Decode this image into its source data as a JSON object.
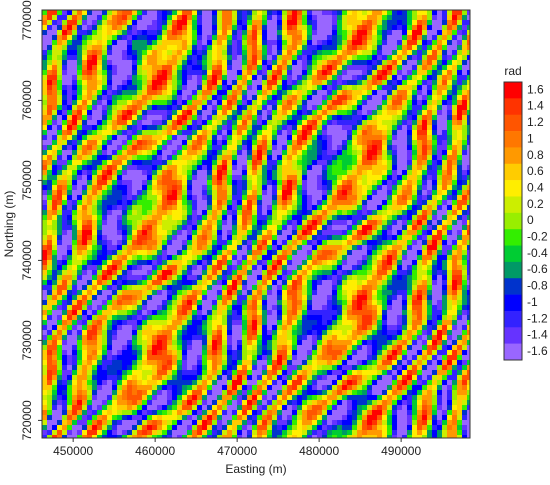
{
  "chart_data": {
    "type": "raster",
    "xlabel": "Easting (m)",
    "ylabel": "Northing (m)",
    "xlim": [
      446200,
      498400
    ],
    "xticks": [
      450000,
      460000,
      470000,
      480000,
      490000
    ],
    "ylim": [
      717800,
      771300
    ],
    "yticks": [
      720000,
      730000,
      740000,
      750000,
      760000,
      770000
    ],
    "colorbar": {
      "title": "rad",
      "levels": [
        1.6,
        1.4,
        1.2,
        1,
        0.8,
        0.6,
        0.4,
        0.2,
        0,
        -0.2,
        -0.4,
        -0.6,
        -0.8,
        -1,
        -1.2,
        -1.4,
        -1.6
      ],
      "colors": [
        "#ff0000",
        "#ff3300",
        "#ff5500",
        "#ff7700",
        "#ff9900",
        "#ffcc00",
        "#ffee00",
        "#ccee00",
        "#99ee00",
        "#33ee00",
        "#00cc33",
        "#009966",
        "#0033cc",
        "#0000ff",
        "#3322ff",
        "#6633ff",
        "#9966ff"
      ]
    }
  }
}
